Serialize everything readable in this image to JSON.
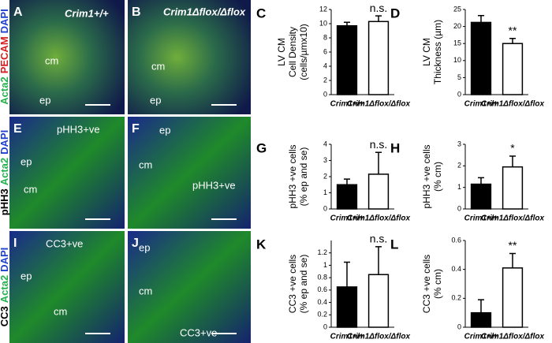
{
  "micrographs": [
    {
      "letter": "A",
      "labels": [
        "Crim1+/+",
        "cm",
        "ep"
      ]
    },
    {
      "letter": "B",
      "labels": [
        "Crim1Δflox/Δflox",
        "cm",
        "ep"
      ]
    },
    {
      "letter": "E",
      "labels": [
        "pHH3+ve",
        "ep",
        "cm"
      ]
    },
    {
      "letter": "F",
      "labels": [
        "ep",
        "cm",
        "pHH3+ve"
      ]
    },
    {
      "letter": "I",
      "labels": [
        "CC3+ve",
        "ep",
        "cm"
      ]
    },
    {
      "letter": "J",
      "labels": [
        "ep",
        "cm",
        "CC3+ve"
      ]
    }
  ],
  "row_labels": [
    [
      {
        "text": "Acta2",
        "color": "#22b14c"
      },
      {
        "text": "PECAM",
        "color": "#d42020"
      },
      {
        "text": "DAPI",
        "color": "#2040d0"
      }
    ],
    [
      {
        "text": "pHH3",
        "color": "#000000"
      },
      {
        "text": "Acta2",
        "color": "#22b14c"
      },
      {
        "text": "DAPI",
        "color": "#2040d0"
      }
    ],
    [
      {
        "text": "CC3",
        "color": "#000000"
      },
      {
        "text": "Acta2",
        "color": "#22b14c"
      },
      {
        "text": "DAPI",
        "color": "#2040d0"
      }
    ]
  ],
  "chart_data": [
    {
      "type": "bar",
      "panel": "C",
      "ylabel": [
        "LV CM",
        "Cell Density",
        "(cells/µmx10)"
      ],
      "categories": [
        "Crim1+/+",
        "Crim1Δflox/Δflox"
      ],
      "values": [
        9.7,
        10.3
      ],
      "errors": [
        0.5,
        0.8
      ],
      "colors": [
        "#000000",
        "#ffffff"
      ],
      "annotation": "n.s.",
      "ylim": [
        0,
        12
      ],
      "yticks": [
        0,
        2,
        4,
        6,
        8,
        10,
        12
      ]
    },
    {
      "type": "bar",
      "panel": "D",
      "ylabel": [
        "LV CM",
        "Thickness (µm)"
      ],
      "categories": [
        "Crim1+/+",
        "Crim1Δflox/Δflox"
      ],
      "values": [
        21.2,
        15.0
      ],
      "errors": [
        2.0,
        1.5
      ],
      "colors": [
        "#000000",
        "#ffffff"
      ],
      "annotation": "**",
      "ylim": [
        0,
        25
      ],
      "yticks": [
        0,
        5,
        10,
        15,
        20,
        25
      ]
    },
    {
      "type": "bar",
      "panel": "G",
      "ylabel": [
        "pHH3 +ve cells",
        "(% ep and se)"
      ],
      "categories": [
        "Crim1+/+",
        "Crim1Δflox/Δflox"
      ],
      "values": [
        1.5,
        2.15
      ],
      "errors": [
        0.35,
        1.35
      ],
      "colors": [
        "#000000",
        "#ffffff"
      ],
      "annotation": "n.s.",
      "ylim": [
        0,
        4
      ],
      "yticks": [
        0,
        1,
        2,
        3,
        4
      ]
    },
    {
      "type": "bar",
      "panel": "H",
      "ylabel": [
        "pHH3 +ve cells",
        "(% cm)"
      ],
      "categories": [
        "Crim1+/+",
        "Crim1Δflox/Δflox"
      ],
      "values": [
        1.15,
        1.95
      ],
      "errors": [
        0.3,
        0.5
      ],
      "colors": [
        "#000000",
        "#ffffff"
      ],
      "annotation": "*",
      "ylim": [
        0,
        3
      ],
      "yticks": [
        0,
        1,
        2,
        3
      ]
    },
    {
      "type": "bar",
      "panel": "K",
      "ylabel": [
        "CC3 +ve cells",
        "(% ep and se)"
      ],
      "categories": [
        "Crim1+/+",
        "Crim1Δflox/Δflox"
      ],
      "values": [
        0.65,
        0.85
      ],
      "errors": [
        0.4,
        0.45
      ],
      "colors": [
        "#000000",
        "#ffffff"
      ],
      "annotation": "n.s.",
      "ylim": [
        0,
        1.4
      ],
      "yticks": [
        0,
        0.2,
        0.4,
        0.6,
        0.8,
        1,
        1.2
      ]
    },
    {
      "type": "bar",
      "panel": "L",
      "ylabel": [
        "CC3 +ve cells",
        "(% cm)"
      ],
      "categories": [
        "Crim1+/+",
        "Crim1Δflox/Δflox"
      ],
      "values": [
        0.1,
        0.41
      ],
      "errors": [
        0.09,
        0.1
      ],
      "colors": [
        "#000000",
        "#ffffff"
      ],
      "annotation": "**",
      "ylim": [
        0,
        0.6
      ],
      "yticks": [
        0,
        0.2,
        0.4,
        0.6
      ]
    }
  ]
}
